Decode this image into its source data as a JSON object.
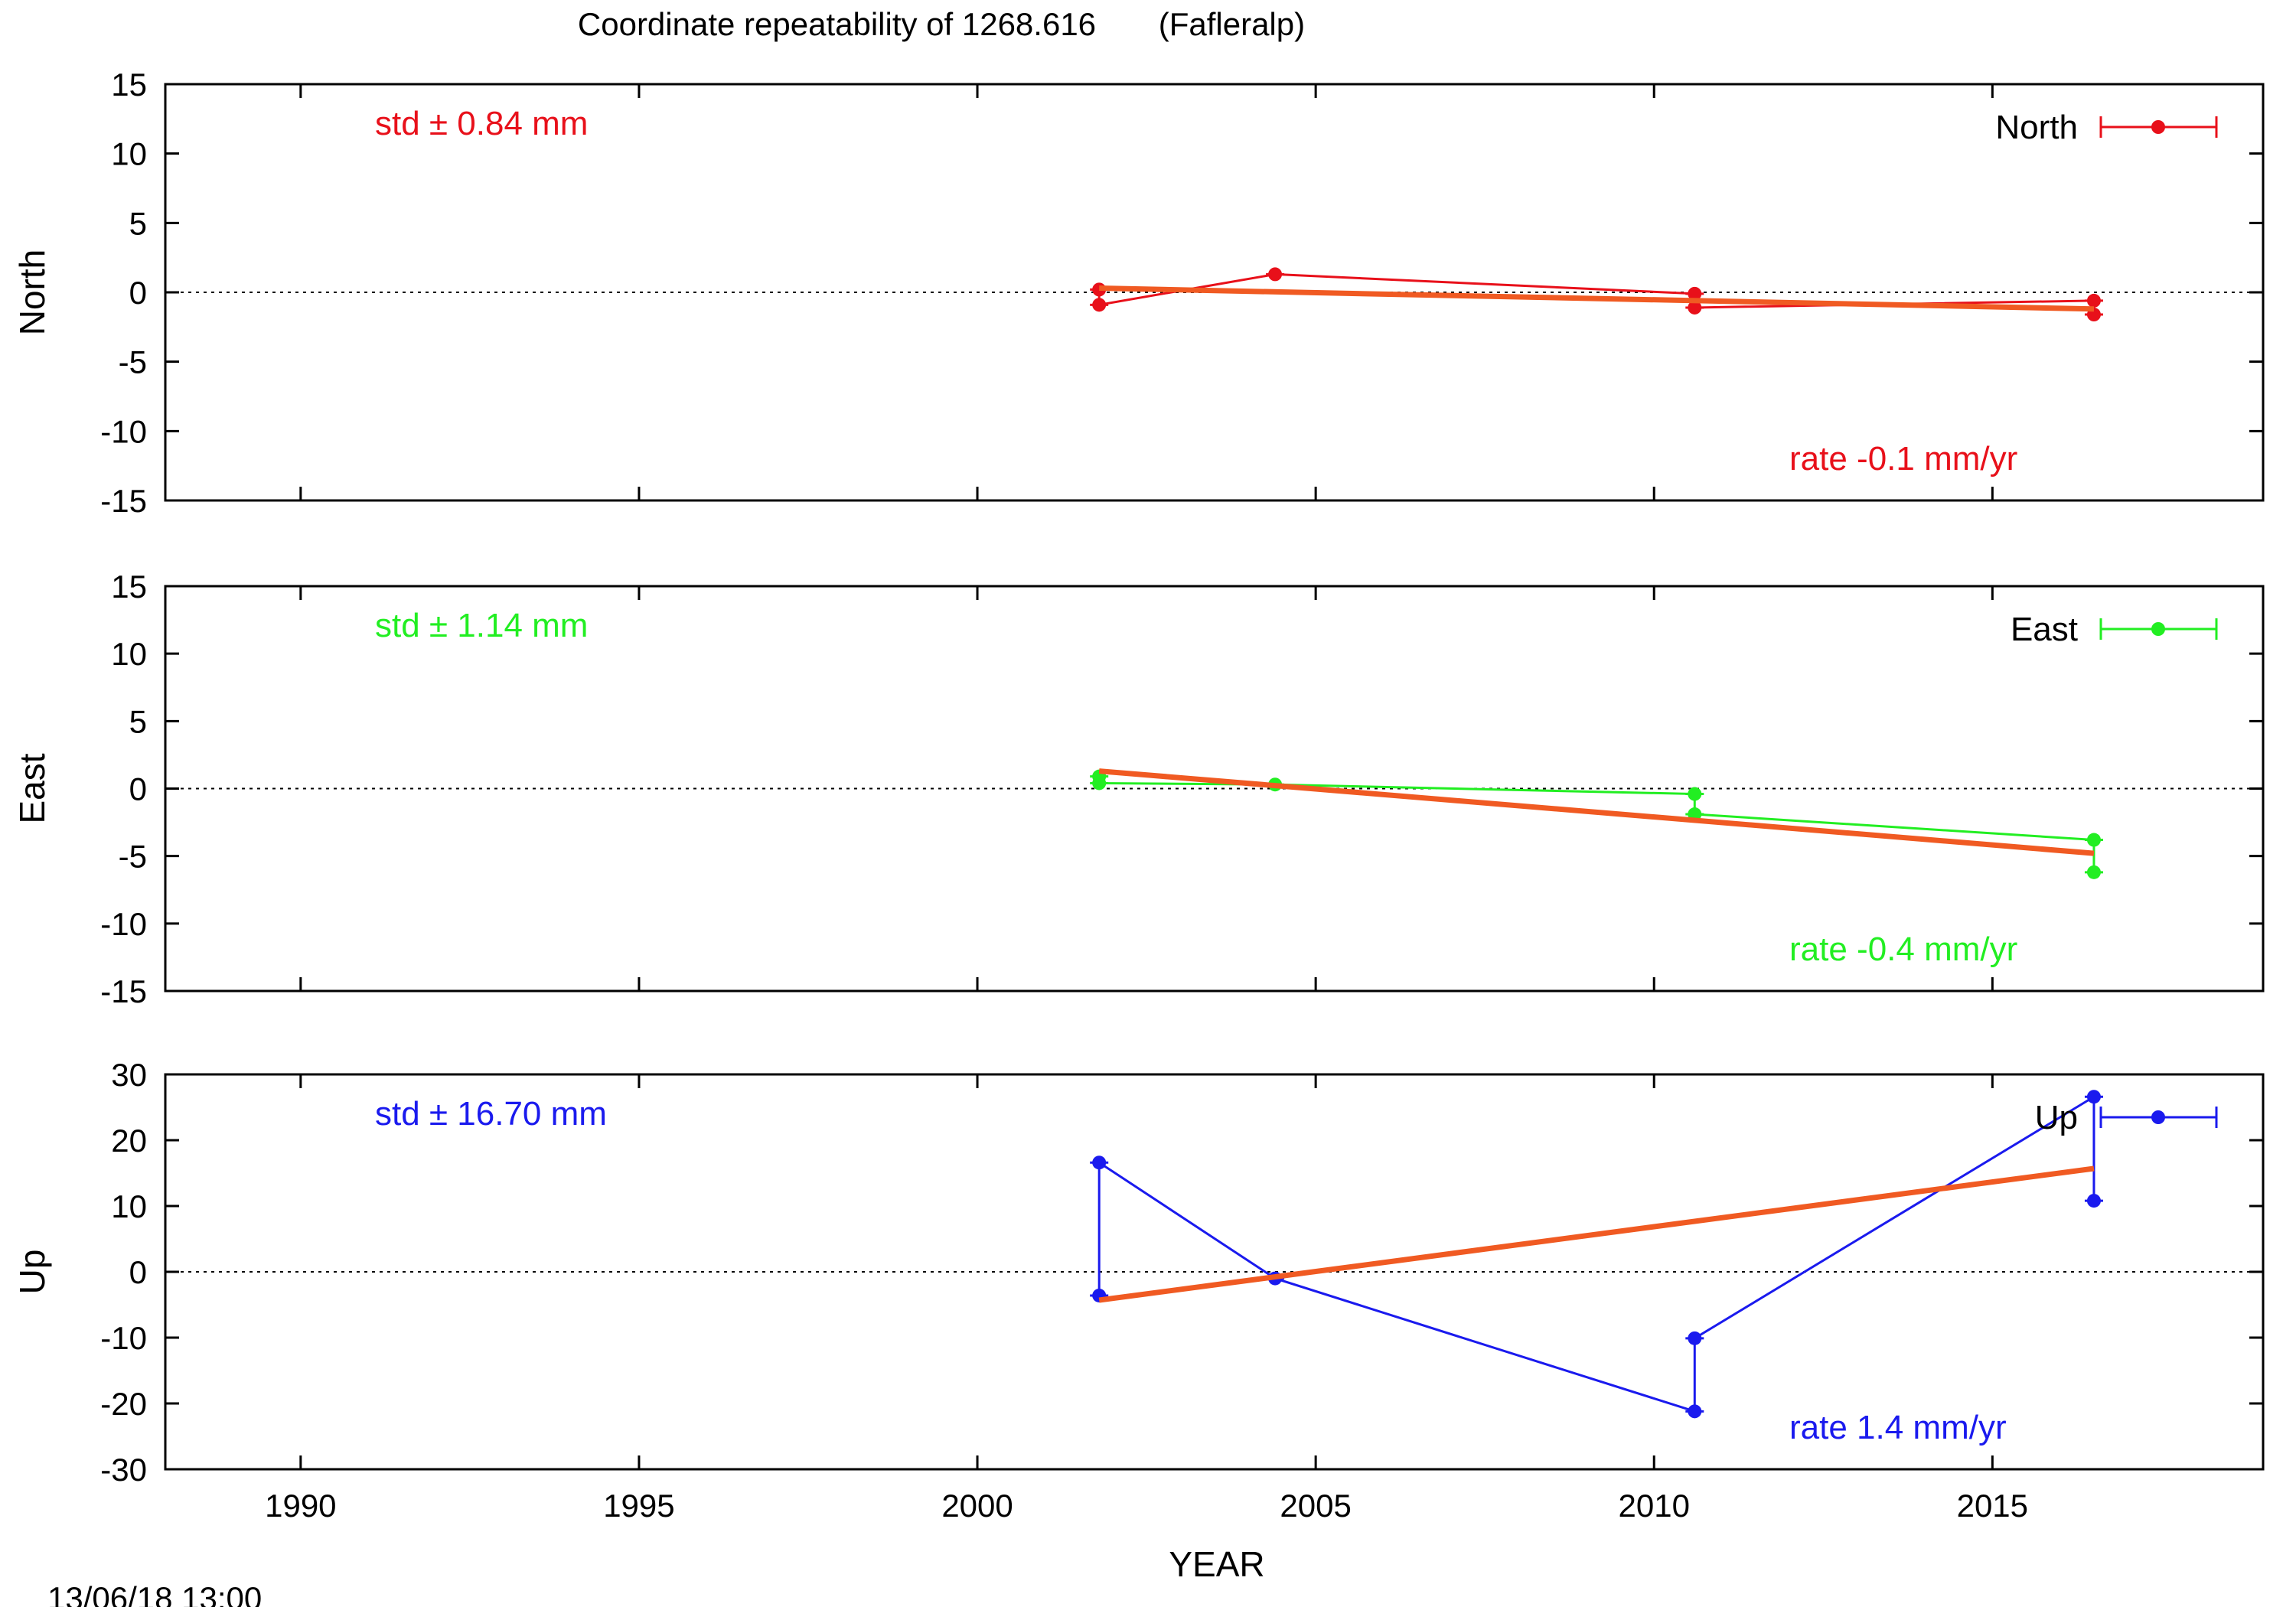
{
  "figure": {
    "title": "Coordinate repeatability of 1268.616       (Fafleralp)",
    "xlabel": "YEAR",
    "timestamp": "13/06/18 13:00"
  },
  "chart_data": [
    {
      "type": "line",
      "panel": "north",
      "ylabel": "North",
      "color": "#e8101a",
      "trend_color": "#f05a22",
      "xlim": [
        1988,
        2019
      ],
      "ylim": [
        -15,
        15
      ],
      "yticks": [
        -15,
        -10,
        -5,
        0,
        5,
        10,
        15
      ],
      "zero_line": true,
      "legend": {
        "label": "North",
        "position": "top-right"
      },
      "std_text": "std ± 0.84 mm",
      "rate_text": "rate -0.1 mm/yr",
      "series": [
        {
          "name": "North",
          "x": [
            2001.8,
            2001.8,
            2004.4,
            2010.6,
            2010.6,
            2016.5,
            2016.5
          ],
          "y": [
            0.2,
            -0.9,
            1.3,
            -0.1,
            -1.1,
            -0.6,
            -1.6
          ]
        }
      ],
      "trend": {
        "x": [
          2001.8,
          2016.5
        ],
        "y": [
          0.3,
          -1.2
        ]
      }
    },
    {
      "type": "line",
      "panel": "east",
      "ylabel": "East",
      "color": "#22ee22",
      "trend_color": "#f05a22",
      "xlim": [
        1988,
        2019
      ],
      "ylim": [
        -15,
        15
      ],
      "yticks": [
        -15,
        -10,
        -5,
        0,
        5,
        10,
        15
      ],
      "zero_line": true,
      "legend": {
        "label": "East",
        "position": "top-right"
      },
      "std_text": "std ± 1.14 mm",
      "rate_text": "rate -0.4 mm/yr",
      "series": [
        {
          "name": "East",
          "x": [
            2001.8,
            2001.8,
            2004.4,
            2010.6,
            2010.6,
            2016.5,
            2016.5
          ],
          "y": [
            0.9,
            0.4,
            0.3,
            -0.4,
            -1.9,
            -3.8,
            -6.2
          ]
        }
      ],
      "trend": {
        "x": [
          2001.8,
          2016.5
        ],
        "y": [
          1.3,
          -4.8
        ]
      }
    },
    {
      "type": "line",
      "panel": "up",
      "ylabel": "Up",
      "color": "#1a1aee",
      "trend_color": "#f05a22",
      "xlim": [
        1988,
        2019
      ],
      "ylim": [
        -30,
        30
      ],
      "yticks": [
        -30,
        -20,
        -10,
        0,
        10,
        20,
        30
      ],
      "xticks": [
        1990,
        1995,
        2000,
        2005,
        2010,
        2015
      ],
      "zero_line": true,
      "legend": {
        "label": "Up",
        "position": "top-right"
      },
      "std_text": "std ± 16.70 mm",
      "rate_text": "rate  1.4 mm/yr",
      "series": [
        {
          "name": "Up",
          "x": [
            2001.8,
            2001.8,
            2004.4,
            2010.6,
            2010.6,
            2016.5,
            2016.5
          ],
          "y": [
            -3.6,
            16.6,
            -1.0,
            -21.2,
            -10.1,
            26.6,
            10.8
          ]
        }
      ],
      "trend": {
        "x": [
          2001.8,
          2016.5
        ],
        "y": [
          -4.3,
          15.7
        ]
      }
    }
  ]
}
